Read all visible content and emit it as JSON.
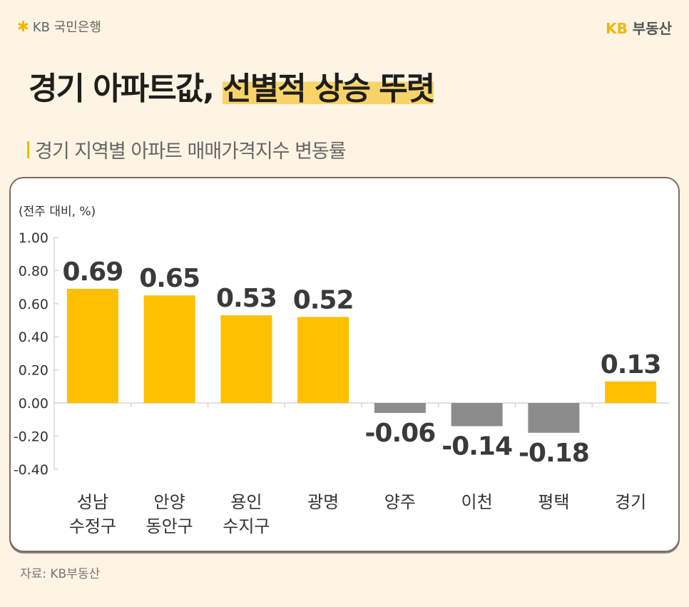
{
  "header": {
    "bank_logo_text": "KB 국민은행",
    "brand_kb": "KB",
    "brand_name": "부동산",
    "title_plain": "경기 아파트값,",
    "title_highlight": "선별적 상승 뚜렷",
    "subtitle": "경기 지역별 아파트 매매가격지수 변동률"
  },
  "colors": {
    "accent": "#ffc000",
    "positive_bar": "#ffc000",
    "negative_bar": "#8c8c8c",
    "background": "#fdf4e3"
  },
  "chart_data": {
    "type": "bar",
    "unit_label": "(전주 대비, %)",
    "categories": [
      "성남 수정구",
      "안양 동안구",
      "용인 수지구",
      "광명",
      "양주",
      "이천",
      "평택",
      "경기"
    ],
    "values": [
      0.69,
      0.65,
      0.53,
      0.52,
      -0.06,
      -0.14,
      -0.18,
      0.13
    ],
    "data_labels": [
      "0.69",
      "0.65",
      "0.53",
      "0.52",
      "-0.06",
      "-0.14",
      "-0.18",
      "0.13"
    ],
    "yticks": [
      "1.00",
      "0.80",
      "0.60",
      "0.40",
      "0.20",
      "0.00",
      "-0.20",
      "-0.40"
    ],
    "ylim": [
      -0.4,
      1.0
    ],
    "grid": false
  },
  "footer": {
    "source": "자료: KB부동산"
  }
}
